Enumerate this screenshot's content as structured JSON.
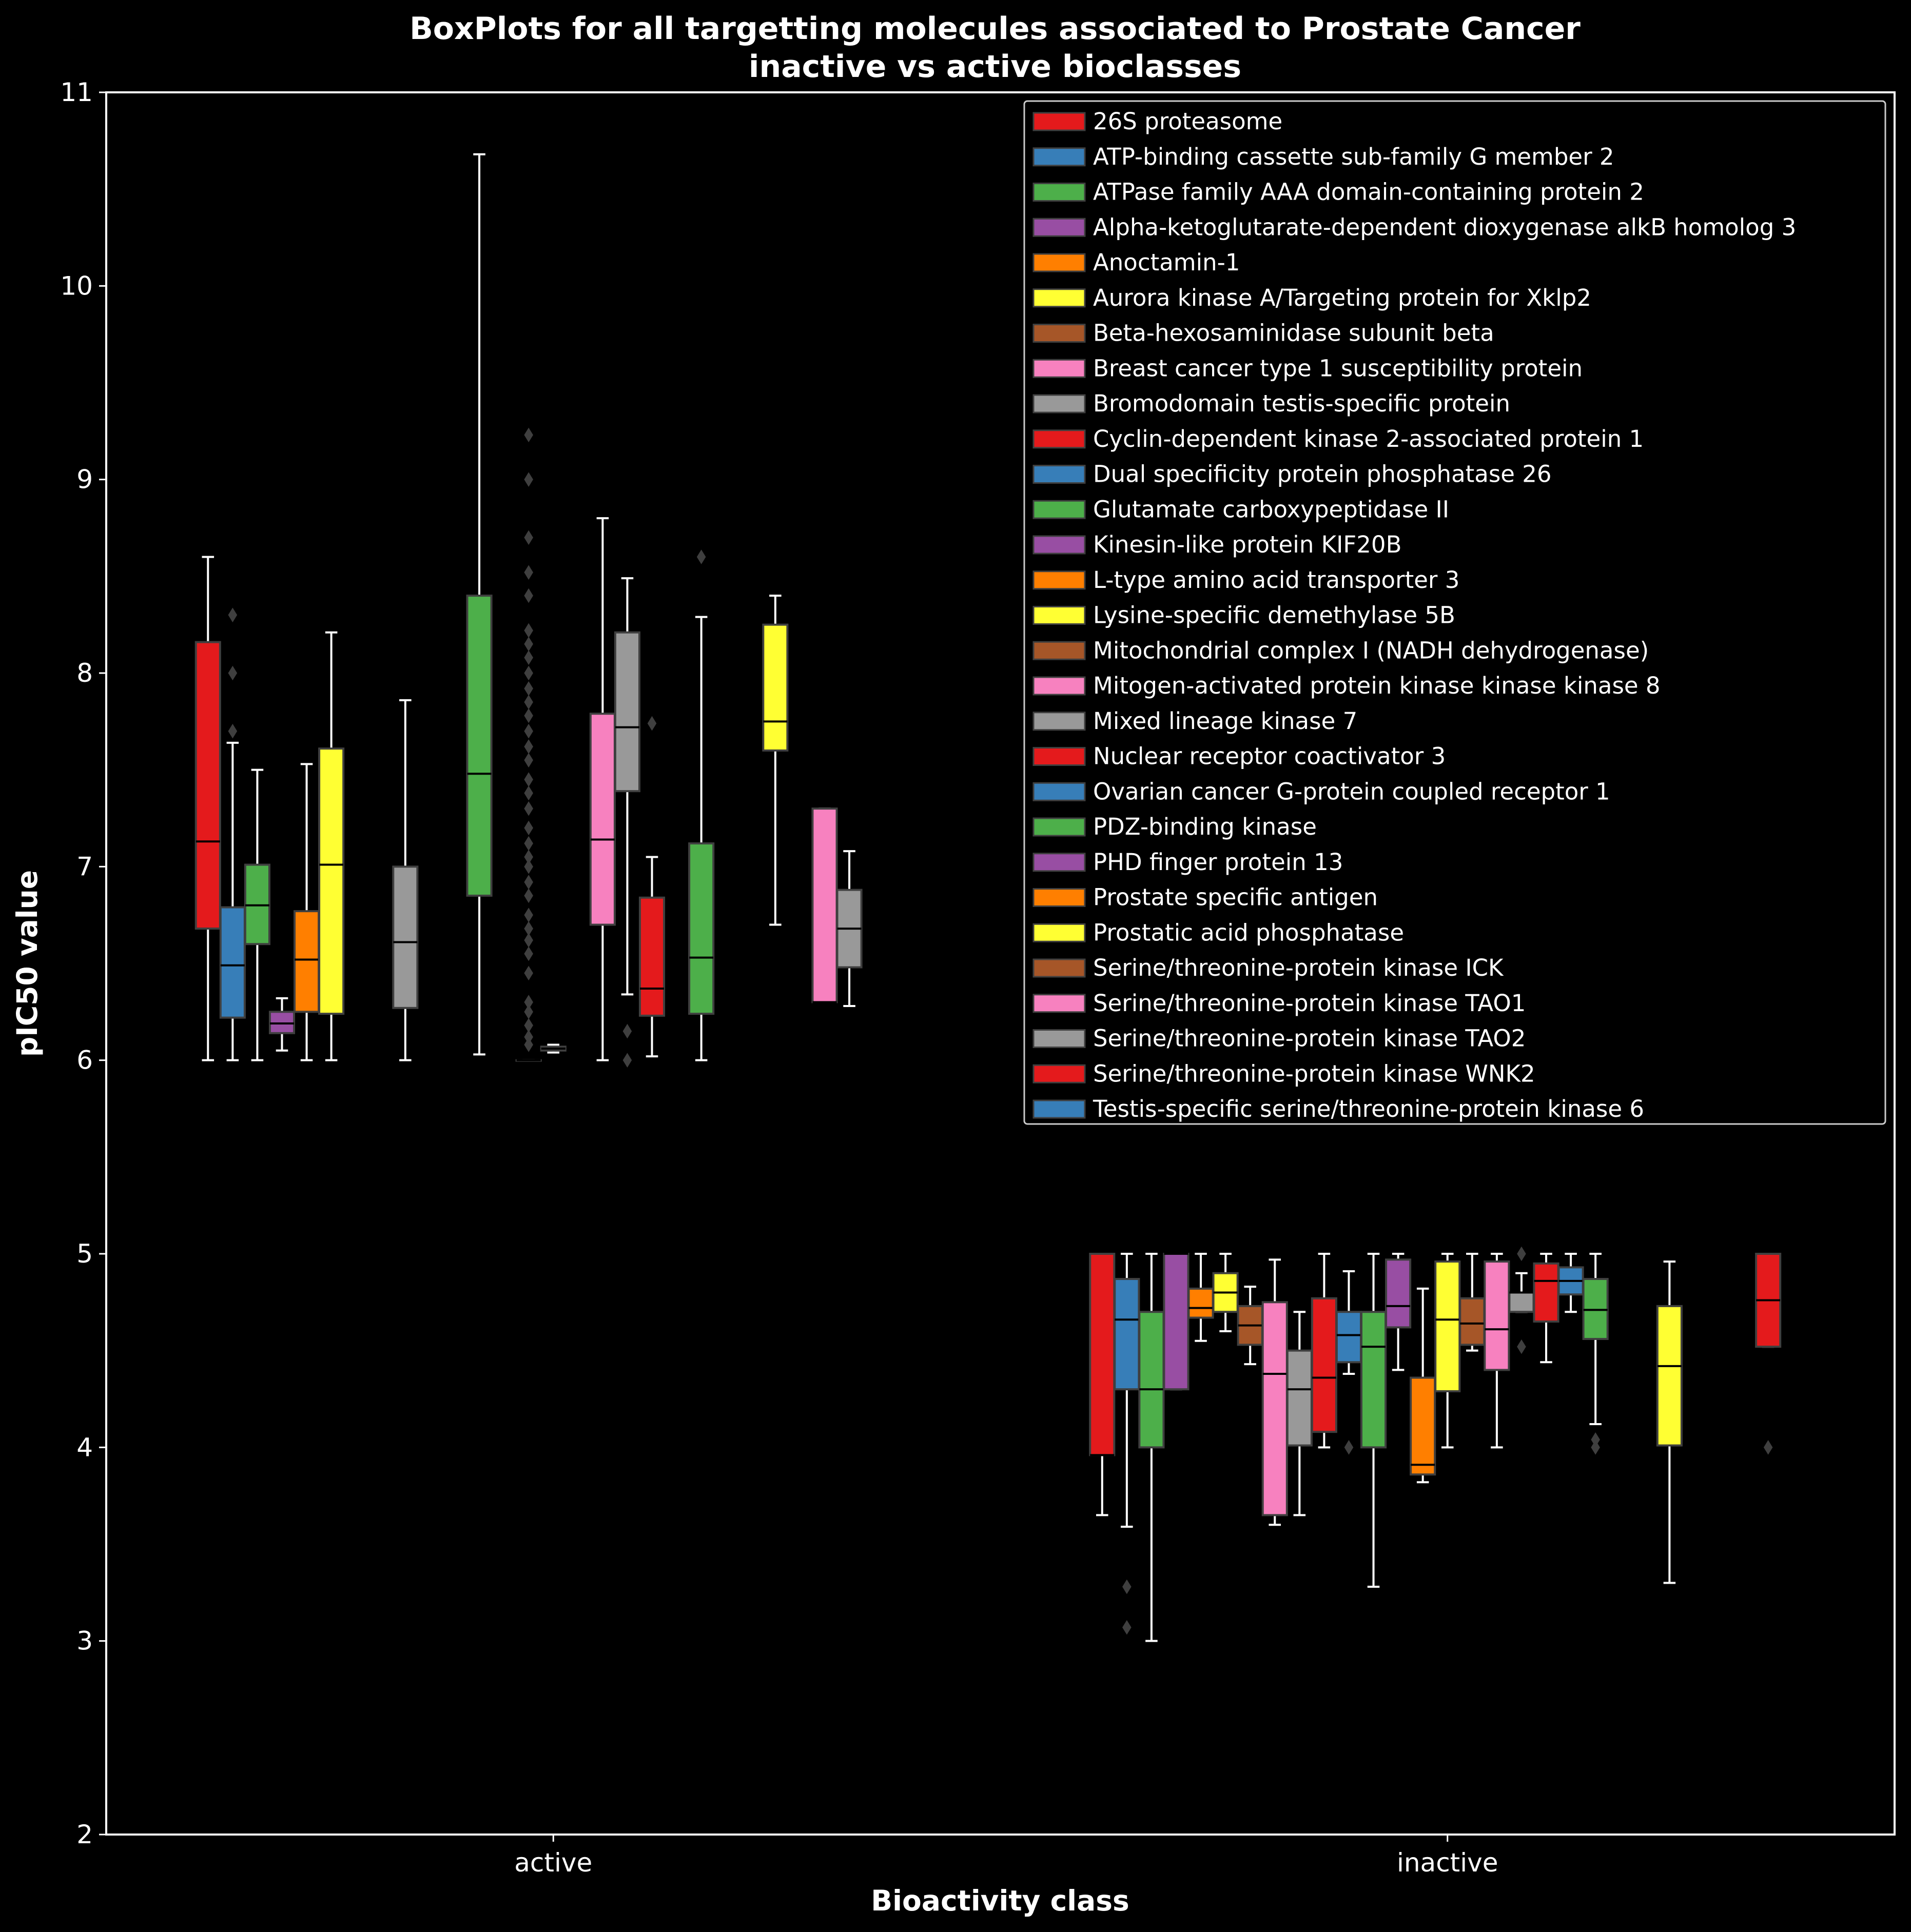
{
  "chart_data": {
    "type": "box",
    "title": "BoxPlots for all targetting molecules associated to Prostate Cancer",
    "subtitle": "inactive vs active bioclasses",
    "xlabel": "Bioactivity class",
    "ylabel": "pIC50 value",
    "categories": [
      "active",
      "inactive"
    ],
    "ylim": [
      2,
      11
    ],
    "yticks": [
      "2",
      "3",
      "4",
      "5",
      "6",
      "7",
      "8",
      "9",
      "10",
      "11"
    ],
    "grid": false,
    "legend_position": "top-right",
    "palette": [
      "#e41a1c",
      "#377eb8",
      "#4daf4a",
      "#984ea3",
      "#ff7f00",
      "#ffff33",
      "#a65628",
      "#f781bf",
      "#999999"
    ],
    "series": [
      {
        "name": "26S proteasome",
        "color": "#e41a1c",
        "active": {
          "whislo": 6.0,
          "q1": 6.68,
          "med": 7.13,
          "q3": 8.16,
          "whishi": 8.6,
          "fliers": []
        },
        "inactive": {
          "whislo": 3.65,
          "q1": 3.96,
          "med": 3.96,
          "q3": 5.0,
          "whishi": 5.0,
          "fliers": []
        }
      },
      {
        "name": "ATP-binding cassette sub-family G member 2",
        "color": "#377eb8",
        "active": {
          "whislo": 6.0,
          "q1": 6.22,
          "med": 6.49,
          "q3": 6.79,
          "whishi": 7.64,
          "fliers": [
            7.7,
            8.0,
            8.3
          ]
        },
        "inactive": {
          "whislo": 3.59,
          "q1": 4.3,
          "med": 4.66,
          "q3": 4.87,
          "whishi": 5.0,
          "fliers": [
            3.07,
            3.28
          ]
        }
      },
      {
        "name": "ATPase family AAA domain-containing protein 2",
        "color": "#4daf4a",
        "active": {
          "whislo": 6.0,
          "q1": 6.6,
          "med": 6.8,
          "q3": 7.01,
          "whishi": 7.5,
          "fliers": []
        },
        "inactive": {
          "whislo": 3.0,
          "q1": 4.0,
          "med": 4.3,
          "q3": 4.7,
          "whishi": 5.0,
          "fliers": []
        }
      },
      {
        "name": "Alpha-ketoglutarate-dependent dioxygenase alkB homolog 3",
        "color": "#984ea3",
        "active": {
          "whislo": 6.05,
          "q1": 6.14,
          "med": 6.19,
          "q3": 6.25,
          "whishi": 6.32,
          "fliers": []
        },
        "inactive": {
          "whislo": 4.3,
          "q1": 4.3,
          "med": 5.0,
          "q3": 5.0,
          "whishi": 5.0,
          "fliers": []
        }
      },
      {
        "name": "Anoctamin-1",
        "color": "#ff7f00",
        "active": {
          "whislo": 6.0,
          "q1": 6.25,
          "med": 6.52,
          "q3": 6.77,
          "whishi": 7.53,
          "fliers": []
        },
        "inactive": {
          "whislo": 4.55,
          "q1": 4.67,
          "med": 4.72,
          "q3": 4.82,
          "whishi": 5.0,
          "fliers": []
        }
      },
      {
        "name": "Aurora kinase A/Targeting protein for Xklp2",
        "color": "#ffff33",
        "active": {
          "whislo": 6.0,
          "q1": 6.24,
          "med": 7.01,
          "q3": 7.61,
          "whishi": 8.21,
          "fliers": []
        },
        "inactive": {
          "whislo": 4.6,
          "q1": 4.7,
          "med": 4.8,
          "q3": 4.9,
          "whishi": 5.0,
          "fliers": []
        }
      },
      {
        "name": "Beta-hexosaminidase subunit beta",
        "color": "#a65628",
        "active": null,
        "inactive": {
          "whislo": 4.43,
          "q1": 4.53,
          "med": 4.63,
          "q3": 4.73,
          "whishi": 4.83,
          "fliers": []
        }
      },
      {
        "name": "Breast cancer type 1 susceptibility protein",
        "color": "#f781bf",
        "active": null,
        "inactive": {
          "whislo": 3.6,
          "q1": 3.65,
          "med": 4.38,
          "q3": 4.75,
          "whishi": 4.97,
          "fliers": []
        }
      },
      {
        "name": "Bromodomain testis-specific protein",
        "color": "#999999",
        "active": {
          "whislo": 6.0,
          "q1": 6.27,
          "med": 6.61,
          "q3": 7.0,
          "whishi": 7.86,
          "fliers": []
        },
        "inactive": {
          "whislo": 3.65,
          "q1": 4.01,
          "med": 4.3,
          "q3": 4.5,
          "whishi": 4.7,
          "fliers": []
        }
      },
      {
        "name": "Cyclin-dependent kinase 2-associated protein 1",
        "color": "#e41a1c",
        "active": null,
        "inactive": {
          "whislo": 4.0,
          "q1": 4.08,
          "med": 4.36,
          "q3": 4.77,
          "whishi": 5.0,
          "fliers": []
        }
      },
      {
        "name": "Dual specificity protein phosphatase 26",
        "color": "#377eb8",
        "active": null,
        "inactive": {
          "whislo": 4.38,
          "q1": 4.44,
          "med": 4.58,
          "q3": 4.7,
          "whishi": 4.91,
          "fliers": [
            4.0
          ]
        }
      },
      {
        "name": "Glutamate carboxypeptidase II",
        "color": "#4daf4a",
        "active": {
          "whislo": 6.03,
          "q1": 6.85,
          "med": 7.48,
          "q3": 8.4,
          "whishi": 10.68,
          "fliers": []
        },
        "inactive": {
          "whislo": 3.28,
          "q1": 4.0,
          "med": 4.52,
          "q3": 4.7,
          "whishi": 5.0,
          "fliers": []
        }
      },
      {
        "name": "Kinesin-like protein KIF20B",
        "color": "#984ea3",
        "active": null,
        "inactive": {
          "whislo": 4.4,
          "q1": 4.62,
          "med": 4.73,
          "q3": 4.97,
          "whishi": 5.0,
          "fliers": []
        }
      },
      {
        "name": "L-type amino acid transporter 3",
        "color": "#ff7f00",
        "active": {
          "whislo": 6.0,
          "q1": 6.0,
          "med": 6.0,
          "q3": 6.0,
          "whishi": 6.0,
          "fliers": [
            6.08,
            6.12,
            6.18,
            6.25,
            6.3,
            6.45,
            6.55,
            6.62,
            6.68,
            6.75,
            6.85,
            6.92,
            7.0,
            7.05,
            7.12,
            7.2,
            7.3,
            7.38,
            7.45,
            7.55,
            7.62,
            7.7,
            7.78,
            7.85,
            7.92,
            8.0,
            8.08,
            8.15,
            8.22,
            8.4,
            8.52,
            8.7,
            9.0,
            9.23
          ]
        },
        "inactive": {
          "whislo": 3.82,
          "q1": 3.86,
          "med": 3.91,
          "q3": 4.36,
          "whishi": 4.82,
          "fliers": []
        }
      },
      {
        "name": "Lysine-specific demethylase 5B",
        "color": "#ffff33",
        "active": {
          "whislo": 6.04,
          "q1": 6.05,
          "med": 6.06,
          "q3": 6.07,
          "whishi": 6.08,
          "fliers": []
        },
        "inactive": {
          "whislo": 4.0,
          "q1": 4.29,
          "med": 4.66,
          "q3": 4.96,
          "whishi": 5.0,
          "fliers": []
        }
      },
      {
        "name": "Mitochondrial complex I (NADH dehydrogenase)",
        "color": "#a65628",
        "active": null,
        "inactive": {
          "whislo": 4.5,
          "q1": 4.53,
          "med": 4.64,
          "q3": 4.77,
          "whishi": 5.0,
          "fliers": []
        }
      },
      {
        "name": "Mitogen-activated protein kinase kinase kinase 8",
        "color": "#f781bf",
        "active": {
          "whislo": 6.0,
          "q1": 6.7,
          "med": 7.14,
          "q3": 7.79,
          "whishi": 8.8,
          "fliers": []
        },
        "inactive": {
          "whislo": 4.0,
          "q1": 4.4,
          "med": 4.61,
          "q3": 4.96,
          "whishi": 5.0,
          "fliers": []
        }
      },
      {
        "name": "Mixed lineage kinase 7",
        "color": "#999999",
        "active": {
          "whislo": 6.34,
          "q1": 7.39,
          "med": 7.72,
          "q3": 8.21,
          "whishi": 8.49,
          "fliers": [
            6.0,
            6.15
          ]
        },
        "inactive": {
          "whislo": 4.7,
          "q1": 4.7,
          "med": 4.8,
          "q3": 4.8,
          "whishi": 4.9,
          "fliers": [
            4.52,
            5.0
          ]
        }
      },
      {
        "name": "Nuclear receptor coactivator 3",
        "color": "#e41a1c",
        "active": {
          "whislo": 6.02,
          "q1": 6.23,
          "med": 6.37,
          "q3": 6.84,
          "whishi": 7.05,
          "fliers": [
            7.74
          ]
        },
        "inactive": {
          "whislo": 4.44,
          "q1": 4.65,
          "med": 4.86,
          "q3": 4.95,
          "whishi": 5.0,
          "fliers": []
        }
      },
      {
        "name": "Ovarian cancer G-protein coupled receptor 1",
        "color": "#377eb8",
        "active": null,
        "inactive": {
          "whislo": 4.7,
          "q1": 4.79,
          "med": 4.86,
          "q3": 4.93,
          "whishi": 5.0,
          "fliers": []
        }
      },
      {
        "name": "PDZ-binding kinase",
        "color": "#4daf4a",
        "active": {
          "whislo": 6.0,
          "q1": 6.24,
          "med": 6.53,
          "q3": 7.12,
          "whishi": 8.29,
          "fliers": [
            8.6
          ]
        },
        "inactive": {
          "whislo": 4.12,
          "q1": 4.56,
          "med": 4.71,
          "q3": 4.87,
          "whishi": 5.0,
          "fliers": [
            4.0,
            4.04
          ]
        }
      },
      {
        "name": "PHD finger protein 13",
        "color": "#984ea3",
        "active": null,
        "inactive": null
      },
      {
        "name": "Prostate specific antigen",
        "color": "#ff7f00",
        "active": null,
        "inactive": null
      },
      {
        "name": "Prostatic acid phosphatase",
        "color": "#ffff33",
        "active": {
          "whislo": 6.7,
          "q1": 7.6,
          "med": 7.75,
          "q3": 8.25,
          "whishi": 8.4,
          "fliers": []
        },
        "inactive": {
          "whislo": 3.3,
          "q1": 4.01,
          "med": 4.42,
          "q3": 4.73,
          "whishi": 4.96,
          "fliers": []
        }
      },
      {
        "name": "Serine/threonine-protein kinase ICK",
        "color": "#a65628",
        "active": null,
        "inactive": null
      },
      {
        "name": "Serine/threonine-protein kinase TAO1",
        "color": "#f781bf",
        "active": {
          "whislo": 6.3,
          "q1": 6.3,
          "med": 6.3,
          "q3": 7.3,
          "whishi": 7.3,
          "fliers": []
        },
        "inactive": null
      },
      {
        "name": "Serine/threonine-protein kinase TAO2",
        "color": "#999999",
        "active": {
          "whislo": 6.28,
          "q1": 6.48,
          "med": 6.68,
          "q3": 6.88,
          "whishi": 7.08,
          "fliers": []
        },
        "inactive": null
      },
      {
        "name": "Serine/threonine-protein kinase WNK2",
        "color": "#e41a1c",
        "active": null,
        "inactive": {
          "whislo": 4.52,
          "q1": 4.52,
          "med": 4.76,
          "q3": 5.0,
          "whishi": 5.0,
          "fliers": [
            4.0
          ]
        }
      },
      {
        "name": "Testis-specific serine/threonine-protein kinase 6",
        "color": "#377eb8",
        "active": null,
        "inactive": null
      }
    ]
  }
}
